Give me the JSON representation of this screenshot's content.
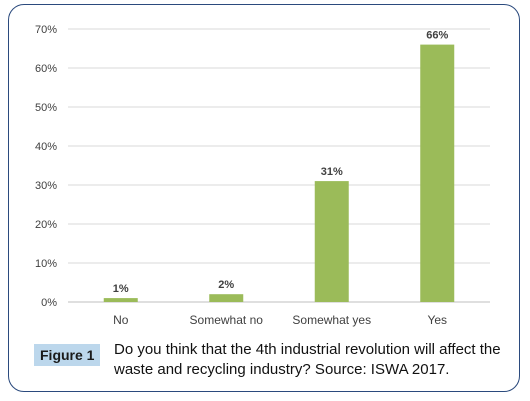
{
  "caption": {
    "label": "Figure 1",
    "text": "Do you think that the 4th industrial revolution will affect the waste and recycling industry? Source: ISWA 2017."
  },
  "chart_data": {
    "type": "bar",
    "categories": [
      "No",
      "Somewhat no",
      "Somewhat yes",
      "Yes"
    ],
    "values": [
      1,
      2,
      31,
      66
    ],
    "data_labels": [
      "1%",
      "2%",
      "31%",
      "66%"
    ],
    "title": "",
    "xlabel": "",
    "ylabel": "",
    "ylim": [
      0,
      70
    ],
    "yticks": [
      0,
      10,
      20,
      30,
      40,
      50,
      60,
      70
    ],
    "ytick_labels": [
      "0%",
      "10%",
      "20%",
      "30%",
      "40%",
      "50%",
      "60%",
      "70%"
    ],
    "grid": true,
    "legend": "none",
    "bar_color": "#9bbb59",
    "grid_color": "#d9d9d9"
  }
}
